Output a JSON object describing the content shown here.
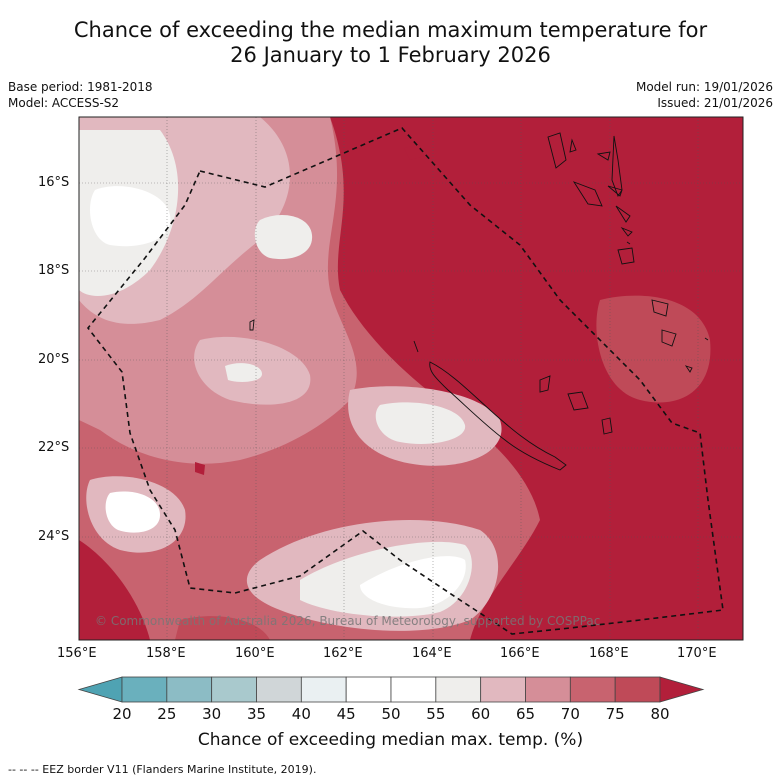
{
  "title_line1": "Chance of exceeding the median maximum temperature for",
  "title_line2": "26 January to 1 February 2026",
  "base_period": "Base period: 1981-2018",
  "model": "Model: ACCESS-S2",
  "model_run": "Model run: 19/01/2026",
  "issued": "Issued: 21/01/2026",
  "copyright": "© Commonwealth of Australia 2026, Bureau of Meteorology, supported by COSPPac",
  "lat_ticks": [
    "16°S",
    "18°S",
    "20°S",
    "22°S",
    "24°S"
  ],
  "lon_ticks": [
    "156°E",
    "158°E",
    "160°E",
    "162°E",
    "164°E",
    "166°E",
    "168°E",
    "170°E"
  ],
  "colorbar": {
    "ticks": [
      "20",
      "25",
      "30",
      "35",
      "40",
      "45",
      "50",
      "55",
      "60",
      "65",
      "70",
      "75",
      "80"
    ],
    "colors": [
      "#4fa3b3",
      "#6ab0bd",
      "#8cbcc5",
      "#a9c9cd",
      "#d0d6d8",
      "#eaf0f2",
      "#ffffff",
      "#ffffff",
      "#efeeec",
      "#e1b8bf",
      "#d58e98",
      "#c8636f",
      "#bf4a58",
      "#b21f3a"
    ],
    "label": "Chance of exceeding median max. temp. (%)"
  },
  "legend_footer": "--  --  -- EEZ border V11 (Flanders Marine Institute, 2019)."
}
